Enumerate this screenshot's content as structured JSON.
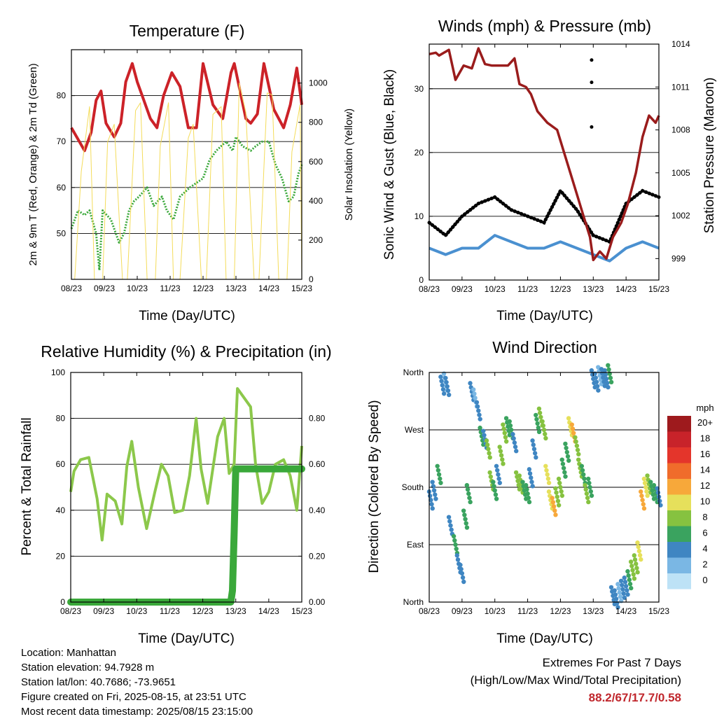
{
  "location_line": "Location: Manhattan",
  "elevation_line": "Station elevation: 94.7928 m",
  "latlon_line": "Station lat/lon: 40.7686; -73.9651",
  "created_line": "Figure created on Fri, 2025-08-15, at 23:51 UTC",
  "recent_line": "Most recent data timestamp: 2025/08/15 23:15:00",
  "extremes": {
    "title": "Extremes For Past 7 Days",
    "subtitle": "(High/Low/Max Wind/Total Precipitation)",
    "values": "88.2/67/17.7/0.58"
  },
  "colors": {
    "red": "#cc2228",
    "green": "#3aa83a",
    "yellow": "#f4dc5a",
    "black": "#000000",
    "blue": "#4a90d0",
    "maroon": "#9a1c1c",
    "lightgreen": "#8cc84b"
  },
  "chart_data": [
    {
      "type": "line",
      "title": "Temperature (F)",
      "xlabel": "Time (Day/UTC)",
      "ylabel": "2m & 9m T (Red, Orange) & 2m Td (Green)",
      "ylabel_right": "Solar Insolation (Yellow)",
      "xlim": [
        8,
        15
      ],
      "ylim": [
        40,
        90
      ],
      "ylim_right": [
        0,
        1170
      ],
      "x_ticks": [
        "08/23",
        "09/23",
        "10/23",
        "11/23",
        "12/23",
        "13/23",
        "14/23",
        "15/23"
      ],
      "y_ticks": [
        50,
        60,
        70,
        80
      ],
      "y_ticks_right": [
        0,
        200,
        400,
        600,
        800,
        1000
      ],
      "series": [
        {
          "color": "red",
          "x": [
            8.0,
            8.4,
            8.6,
            8.75,
            8.9,
            9.05,
            9.3,
            9.5,
            9.65,
            9.85,
            10.0,
            10.4,
            10.6,
            10.8,
            11.05,
            11.3,
            11.55,
            11.8,
            12.0,
            12.3,
            12.6,
            12.85,
            12.95,
            13.3,
            13.45,
            13.65,
            13.85,
            14.15,
            14.45,
            14.65,
            14.85,
            15.0
          ],
          "y": [
            73,
            68,
            72,
            79,
            81,
            74,
            71,
            74,
            83,
            87,
            83,
            75,
            73,
            80,
            85,
            82,
            73,
            73,
            87,
            78,
            75,
            85,
            87,
            75,
            74,
            76,
            87,
            77,
            73,
            78,
            86,
            78
          ]
        },
        {
          "color": "green",
          "x": [
            8.0,
            8.2,
            8.4,
            8.55,
            8.75,
            8.85,
            8.95,
            9.2,
            9.45,
            9.6,
            9.75,
            9.9,
            10.05,
            10.3,
            10.5,
            10.75,
            10.9,
            11.1,
            11.3,
            11.6,
            11.8,
            12.0,
            12.2,
            12.4,
            12.7,
            12.9,
            13.0,
            13.2,
            13.45,
            13.6,
            13.8,
            14.0,
            14.2,
            14.4,
            14.6,
            14.75,
            14.9,
            15.0
          ],
          "y": [
            51,
            55,
            54,
            55,
            50,
            42,
            55,
            53,
            48,
            50,
            55,
            57,
            58,
            60,
            56,
            58,
            55,
            53,
            58,
            60,
            61,
            62,
            66,
            68,
            70,
            68,
            71,
            69,
            68,
            69,
            70,
            70,
            65,
            62,
            57,
            58,
            63,
            65
          ]
        },
        {
          "color": "yellow",
          "axis": "right",
          "x": [
            8.0,
            8.1,
            8.3,
            8.55,
            8.7,
            8.95,
            9.1,
            9.3,
            9.55,
            9.7,
            9.95,
            10.1,
            10.3,
            10.55,
            10.7,
            10.95,
            11.1,
            11.3,
            11.55,
            11.7,
            11.95,
            12.1,
            12.3,
            12.55,
            12.7,
            12.95,
            13.1,
            13.3,
            13.55,
            13.7,
            13.95,
            14.1,
            14.3,
            14.55,
            14.7,
            14.95,
            15.0
          ],
          "y": [
            0,
            0,
            550,
            880,
            0,
            0,
            700,
            790,
            0,
            0,
            860,
            900,
            0,
            0,
            680,
            900,
            0,
            0,
            720,
            790,
            0,
            0,
            840,
            880,
            0,
            0,
            1000,
            850,
            0,
            0,
            950,
            940,
            0,
            0,
            650,
            890,
            0
          ]
        }
      ]
    },
    {
      "type": "line",
      "title": "Winds (mph) & Pressure (mb)",
      "xlabel": "Time (Day/UTC)",
      "ylabel": "Sonic Wind & Gust (Blue, Black)",
      "ylabel_right": "Station Pressure (Maroon)",
      "xlim": [
        8,
        15
      ],
      "ylim": [
        0,
        37
      ],
      "ylim_right": [
        997.5,
        1014
      ],
      "x_ticks": [
        "08/23",
        "09/23",
        "10/23",
        "11/23",
        "12/23",
        "13/23",
        "14/23",
        "15/23"
      ],
      "y_ticks": [
        0,
        10,
        20,
        30
      ],
      "y_ticks_right": [
        999,
        1002,
        1005,
        1008,
        1011,
        1014
      ],
      "series": [
        {
          "color": "blue",
          "x": [
            8.0,
            8.5,
            9.0,
            9.5,
            10.0,
            10.5,
            11.0,
            11.5,
            12.0,
            12.5,
            13.0,
            13.5,
            14.0,
            14.5,
            15.0
          ],
          "y": [
            5,
            4,
            5,
            5,
            7,
            6,
            5,
            5,
            6,
            5,
            4,
            3,
            5,
            6,
            5
          ]
        },
        {
          "color": "black",
          "x": [
            8.0,
            8.5,
            9.0,
            9.5,
            10.0,
            10.5,
            11.0,
            11.5,
            12.0,
            12.5,
            13.0,
            13.5,
            14.0,
            14.5,
            15.0
          ],
          "y": [
            9,
            7,
            10,
            12,
            13,
            11,
            10,
            9,
            14,
            11,
            7,
            6,
            12,
            14,
            13
          ]
        },
        {
          "color": "maroon",
          "axis": "right",
          "x": [
            8.0,
            8.2,
            8.3,
            8.6,
            8.8,
            9.05,
            9.3,
            9.5,
            9.7,
            9.9,
            10.2,
            10.4,
            10.6,
            10.75,
            10.95,
            11.1,
            11.3,
            11.6,
            11.9,
            12.1,
            12.3,
            12.5,
            12.7,
            12.9,
            13.0,
            13.2,
            13.4,
            13.6,
            13.85,
            14.05,
            14.3,
            14.5,
            14.7,
            14.9,
            15.0
          ],
          "y": [
            1013.3,
            1013.4,
            1013.2,
            1013.6,
            1011.5,
            1012.5,
            1012.3,
            1013.7,
            1012.6,
            1012.5,
            1012.5,
            1012.5,
            1013.0,
            1011.2,
            1011.0,
            1010.5,
            1009.3,
            1008.5,
            1008.0,
            1006.5,
            1005.0,
            1003.5,
            1002.0,
            1000.5,
            998.9,
            999.5,
            999.0,
            1000.5,
            1001.5,
            1002.8,
            1005.0,
            1007.5,
            1009.0,
            1008.5,
            1009.0
          ]
        }
      ],
      "gust_extremes": {
        "x": [
          12.95,
          12.95,
          12.95
        ],
        "y": [
          34.5,
          31,
          24
        ]
      }
    },
    {
      "type": "line",
      "title": "Relative Humidity (%) & Precipitation (in)",
      "xlabel": "Time (Day/UTC)",
      "ylabel": "Percent & Total Rainfall",
      "xlim": [
        8,
        15
      ],
      "ylim": [
        0,
        100
      ],
      "ylim_right": [
        0,
        1.0
      ],
      "x_ticks": [
        "08/23",
        "09/23",
        "10/23",
        "11/23",
        "12/23",
        "13/23",
        "14/23",
        "15/23"
      ],
      "y_ticks": [
        0,
        20,
        40,
        60,
        80,
        100
      ],
      "y_ticks_right": [
        "0.00",
        "0.20",
        "0.40",
        "0.60",
        "0.80"
      ],
      "series": [
        {
          "color": "lightgreen",
          "x": [
            8.0,
            8.1,
            8.3,
            8.55,
            8.8,
            8.95,
            9.1,
            9.35,
            9.55,
            9.7,
            9.85,
            10.05,
            10.3,
            10.55,
            10.75,
            10.95,
            11.15,
            11.4,
            11.6,
            11.8,
            11.95,
            12.15,
            12.45,
            12.65,
            12.8,
            12.95,
            13.05,
            13.25,
            13.45,
            13.6,
            13.8,
            14.0,
            14.2,
            14.45,
            14.65,
            14.85,
            15.0
          ],
          "y": [
            48,
            57,
            62,
            63,
            45,
            27,
            47,
            44,
            34,
            59,
            70,
            50,
            32,
            48,
            60,
            55,
            39,
            40,
            55,
            80,
            58,
            43,
            72,
            80,
            56,
            60,
            93,
            89,
            85,
            60,
            43,
            48,
            60,
            62,
            55,
            40,
            68
          ]
        },
        {
          "color": "green",
          "axis": "right",
          "x": [
            8.0,
            12.85,
            12.9,
            12.95,
            13.0,
            15.0
          ],
          "y": [
            0.0,
            0.0,
            0.05,
            0.3,
            0.58,
            0.58
          ]
        }
      ]
    },
    {
      "type": "scatter",
      "title": "Wind Direction",
      "xlabel": "Time (Day/UTC)",
      "ylabel": "Direction (Colored By Speed)",
      "xlim": [
        8,
        15
      ],
      "x_ticks": [
        "08/23",
        "09/23",
        "10/23",
        "11/23",
        "12/23",
        "13/23",
        "14/23",
        "15/23"
      ],
      "y_ticks": [
        "North",
        "East",
        "South",
        "West",
        "North"
      ],
      "legend": {
        "title": "mph",
        "labels": [
          "20+",
          "18",
          "16",
          "14",
          "12",
          "10",
          "8",
          "6",
          "4",
          "2",
          "0"
        ],
        "colors": [
          "#9e1a1d",
          "#c8232a",
          "#e4352b",
          "#f06c2b",
          "#f7a83a",
          "#e6e05b",
          "#86c240",
          "#3aa35f",
          "#3f86c2",
          "#7ab7e4",
          "#bde2f6"
        ]
      },
      "points_x": [
        8.05,
        8.15,
        8.3,
        8.4,
        8.5,
        8.55,
        8.65,
        8.8,
        8.9,
        9.0,
        9.1,
        9.2,
        9.3,
        9.4,
        9.5,
        9.6,
        9.7,
        9.8,
        9.9,
        10.0,
        10.1,
        10.2,
        10.3,
        10.4,
        10.5,
        10.6,
        10.7,
        10.8,
        10.9,
        11.0,
        11.1,
        11.2,
        11.3,
        11.4,
        11.5,
        11.6,
        11.7,
        11.8,
        11.9,
        12.0,
        12.1,
        12.2,
        12.3,
        12.4,
        12.5,
        12.6,
        12.7,
        12.8,
        12.9,
        13.0,
        13.1,
        13.2,
        13.3,
        13.4,
        13.5,
        13.6,
        13.7,
        13.8,
        13.9,
        14.0,
        14.1,
        14.2,
        14.3,
        14.4,
        14.5,
        14.6,
        14.7,
        14.8,
        14.9,
        15.0
      ],
      "points_y": [
        160,
        175,
        200,
        340,
        345,
        338,
        120,
        90,
        60,
        45,
        130,
        170,
        330,
        320,
        300,
        260,
        255,
        240,
        190,
        175,
        200,
        230,
        265,
        275,
        270,
        250,
        190,
        185,
        175,
        170,
        195,
        240,
        280,
        290,
        270,
        200,
        160,
        150,
        165,
        180,
        210,
        235,
        275,
        265,
        245,
        210,
        200,
        170,
        180,
        350,
        345,
        355,
        352,
        350,
        358,
        10,
        5,
        15,
        20,
        25,
        35,
        50,
        60,
        80,
        160,
        180,
        185,
        175,
        170,
        165
      ],
      "points_speed": [
        3,
        4,
        6,
        3,
        2,
        3,
        4,
        5,
        3,
        4,
        5,
        6,
        3,
        2,
        3,
        6,
        4,
        7,
        8,
        5,
        4,
        8,
        7,
        6,
        5,
        4,
        8,
        7,
        6,
        5,
        4,
        3,
        6,
        7,
        8,
        9,
        10,
        12,
        8,
        7,
        6,
        5,
        9,
        11,
        8,
        7,
        6,
        8,
        5,
        4,
        3,
        2,
        3,
        4,
        5,
        3,
        4,
        2,
        3,
        4,
        6,
        8,
        7,
        10,
        12,
        9,
        8,
        6,
        5,
        4
      ],
      "points_source": "estimated"
    }
  ]
}
